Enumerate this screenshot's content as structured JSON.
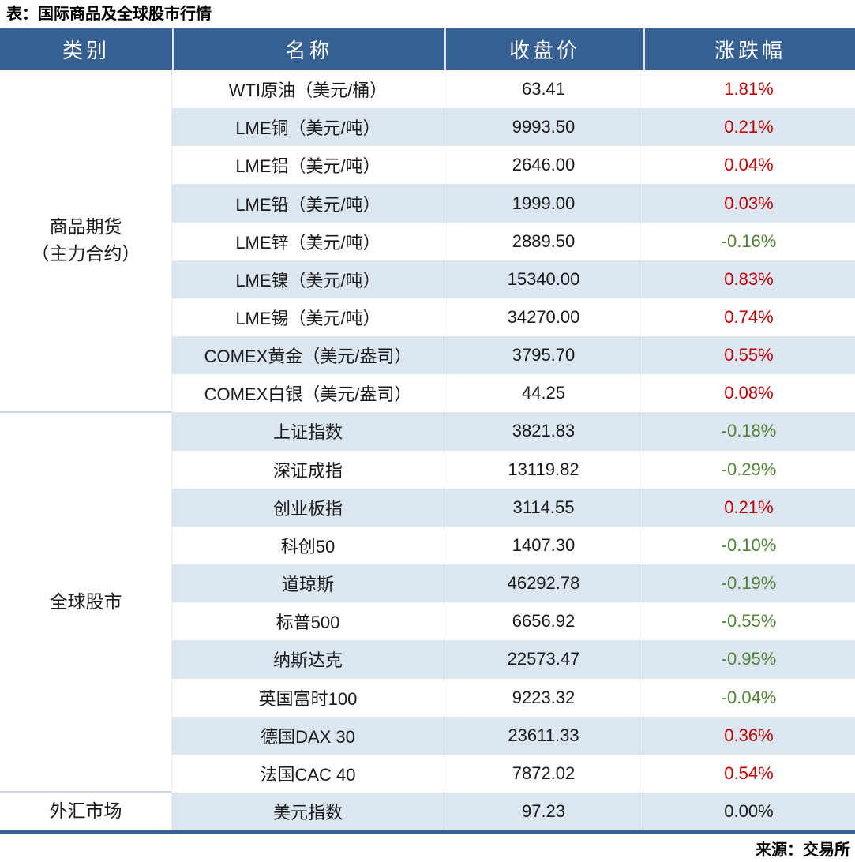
{
  "title": "表：国际商品及全球股市行情",
  "source": "来源：交易所",
  "colors": {
    "header_bg": "#376092",
    "stripe": "#dce6f1",
    "up": "#c00000",
    "down": "#538135",
    "flat": "#1a1a1a",
    "bottom_border": "#376092"
  },
  "chart_data": {
    "type": "table",
    "title": "表：国际商品及全球股市行情",
    "columns": [
      "类别",
      "名称",
      "收盘价",
      "涨跌幅"
    ],
    "rows": [
      [
        "商品期货（主力合约）",
        "WTI原油（美元/桶）",
        63.41,
        "1.81%"
      ],
      [
        "商品期货（主力合约）",
        "LME铜（美元/吨）",
        9993.5,
        "0.21%"
      ],
      [
        "商品期货（主力合约）",
        "LME铝（美元/吨）",
        2646.0,
        "0.04%"
      ],
      [
        "商品期货（主力合约）",
        "LME铅（美元/吨）",
        1999.0,
        "0.03%"
      ],
      [
        "商品期货（主力合约）",
        "LME锌（美元/吨）",
        2889.5,
        "-0.16%"
      ],
      [
        "商品期货（主力合约）",
        "LME镍（美元/吨）",
        15340.0,
        "0.83%"
      ],
      [
        "商品期货（主力合约）",
        "LME锡（美元/吨）",
        34270.0,
        "0.74%"
      ],
      [
        "商品期货（主力合约）",
        "COMEX黄金（美元/盎司）",
        3795.7,
        "0.55%"
      ],
      [
        "商品期货（主力合约）",
        "COMEX白银（美元/盎司）",
        44.25,
        "0.08%"
      ],
      [
        "全球股市",
        "上证指数",
        3821.83,
        "-0.18%"
      ],
      [
        "全球股市",
        "深证成指",
        13119.82,
        "-0.29%"
      ],
      [
        "全球股市",
        "创业板指",
        3114.55,
        "0.21%"
      ],
      [
        "全球股市",
        "科创50",
        1407.3,
        "-0.10%"
      ],
      [
        "全球股市",
        "道琼斯",
        46292.78,
        "-0.19%"
      ],
      [
        "全球股市",
        "标普500",
        6656.92,
        "-0.55%"
      ],
      [
        "全球股市",
        "纳斯达克",
        22573.47,
        "-0.95%"
      ],
      [
        "全球股市",
        "英国富时100",
        9223.32,
        "-0.04%"
      ],
      [
        "全球股市",
        "德国DAX 30",
        23611.33,
        "0.36%"
      ],
      [
        "全球股市",
        "法国CAC 40",
        7872.02,
        "0.54%"
      ],
      [
        "外汇市场",
        "美元指数",
        97.23,
        "0.00%"
      ]
    ]
  },
  "table": {
    "headers": [
      "类别",
      "名称",
      "收盘价",
      "涨跌幅"
    ],
    "groups": [
      {
        "category_lines": [
          "商品期货",
          "（主力合约）"
        ],
        "rows": [
          {
            "name": "WTI原油（美元/桶）",
            "close": "63.41",
            "change": "1.81%",
            "trend": "up"
          },
          {
            "name": "LME铜（美元/吨）",
            "close": "9993.50",
            "change": "0.21%",
            "trend": "up"
          },
          {
            "name": "LME铝（美元/吨）",
            "close": "2646.00",
            "change": "0.04%",
            "trend": "up"
          },
          {
            "name": "LME铅（美元/吨）",
            "close": "1999.00",
            "change": "0.03%",
            "trend": "up"
          },
          {
            "name": "LME锌（美元/吨）",
            "close": "2889.50",
            "change": "-0.16%",
            "trend": "down"
          },
          {
            "name": "LME镍（美元/吨）",
            "close": "15340.00",
            "change": "0.83%",
            "trend": "up"
          },
          {
            "name": "LME锡（美元/吨）",
            "close": "34270.00",
            "change": "0.74%",
            "trend": "up"
          },
          {
            "name": "COMEX黄金（美元/盎司）",
            "close": "3795.70",
            "change": "0.55%",
            "trend": "up"
          },
          {
            "name": "COMEX白银（美元/盎司）",
            "close": "44.25",
            "change": "0.08%",
            "trend": "up"
          }
        ]
      },
      {
        "category_lines": [
          "全球股市"
        ],
        "rows": [
          {
            "name": "上证指数",
            "close": "3821.83",
            "change": "-0.18%",
            "trend": "down"
          },
          {
            "name": "深证成指",
            "close": "13119.82",
            "change": "-0.29%",
            "trend": "down"
          },
          {
            "name": "创业板指",
            "close": "3114.55",
            "change": "0.21%",
            "trend": "up"
          },
          {
            "name": "科创50",
            "close": "1407.30",
            "change": "-0.10%",
            "trend": "down"
          },
          {
            "name": "道琼斯",
            "close": "46292.78",
            "change": "-0.19%",
            "trend": "down"
          },
          {
            "name": "标普500",
            "close": "6656.92",
            "change": "-0.55%",
            "trend": "down"
          },
          {
            "name": "纳斯达克",
            "close": "22573.47",
            "change": "-0.95%",
            "trend": "down"
          },
          {
            "name": "英国富时100",
            "close": "9223.32",
            "change": "-0.04%",
            "trend": "down"
          },
          {
            "name": "德国DAX 30",
            "close": "23611.33",
            "change": "0.36%",
            "trend": "up"
          },
          {
            "name": "法国CAC 40",
            "close": "7872.02",
            "change": "0.54%",
            "trend": "up"
          }
        ]
      },
      {
        "category_lines": [
          "外汇市场"
        ],
        "rows": [
          {
            "name": "美元指数",
            "close": "97.23",
            "change": "0.00%",
            "trend": "flat"
          }
        ]
      }
    ]
  }
}
